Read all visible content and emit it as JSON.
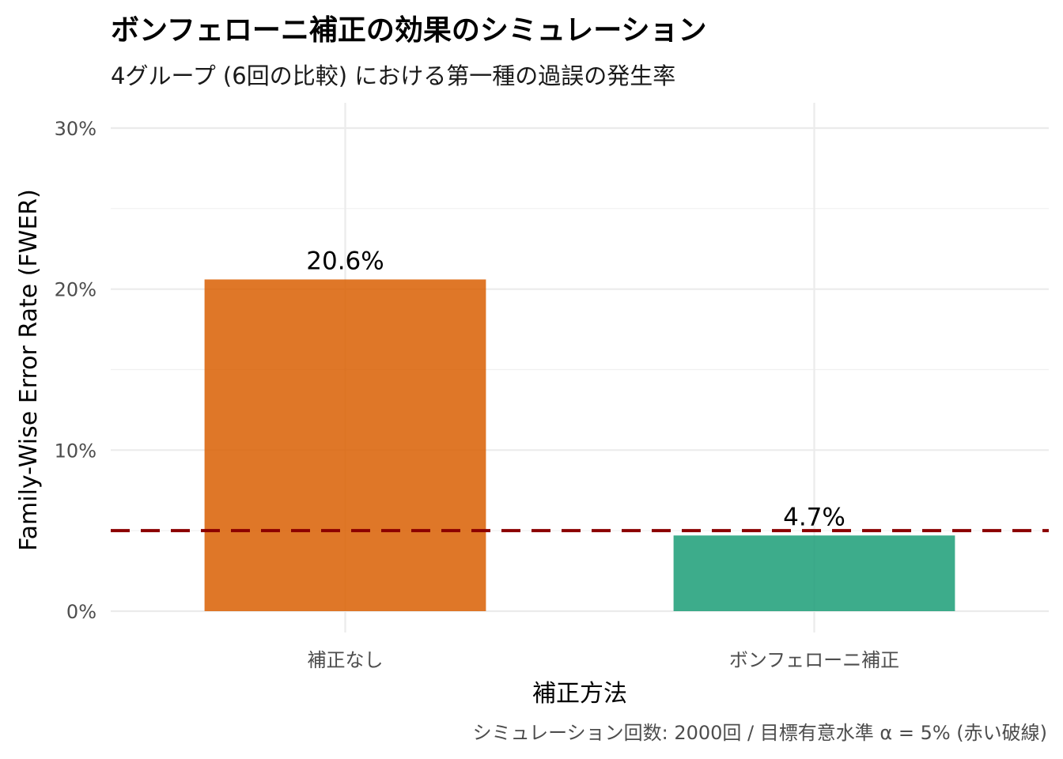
{
  "chart_data": {
    "type": "bar",
    "title": "ボンフェローニ補正の効果のシミュレーション",
    "subtitle": "4グループ (6回の比較) における第一種の過誤の発生率",
    "xlabel": "補正方法",
    "ylabel": "Family-Wise Error Rate (FWER)",
    "categories": [
      "補正なし",
      "ボンフェローニ補正"
    ],
    "values": [
      0.206,
      0.047
    ],
    "data_labels": [
      "20.6%",
      "4.7%"
    ],
    "colors": [
      "#D95F02",
      "#1B9E77"
    ],
    "ylim": [
      0,
      0.3
    ],
    "yticks": [
      0,
      0.1,
      0.2,
      0.3
    ],
    "ytick_labels": [
      "0%",
      "10%",
      "20%",
      "30%"
    ],
    "reference_line": {
      "value": 0.05,
      "color": "#8B0000",
      "style": "dashed"
    },
    "caption": "シミュレーション回数: 2000回 / 目標有意水準 α = 5% (赤い破線)",
    "grid": true,
    "legend": "none"
  }
}
